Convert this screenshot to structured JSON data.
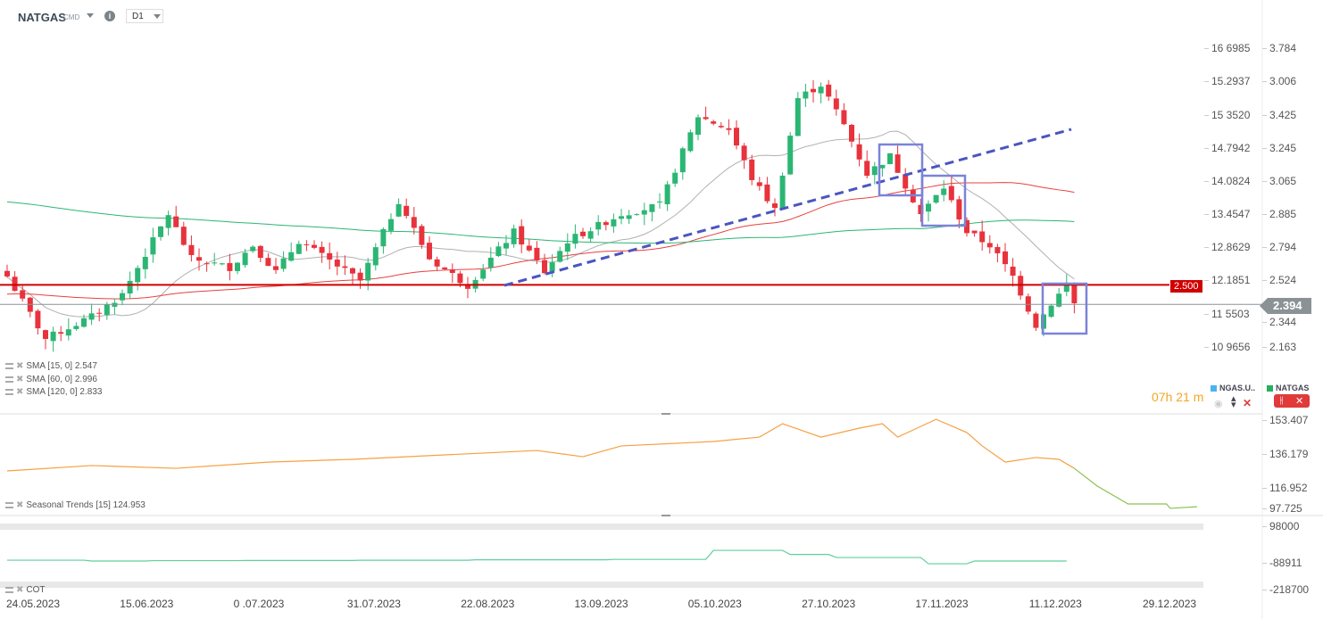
{
  "header": {
    "symbol": "NATGAS",
    "type": "CMD",
    "timeframe": "D1",
    "info_icon": "info-icon"
  },
  "price_axis": [
    "3.784",
    "3.006",
    "3.425",
    "3.245",
    "3.065",
    "2.885",
    "2.794",
    "2.524",
    "2.344",
    "2.163"
  ],
  "secondary_axis": [
    "16 6985",
    "15.2937",
    "15 3520",
    "14.7942",
    "14.0824",
    "13.4547",
    "12.8629",
    "12.1851",
    "11 5503",
    "10 9656"
  ],
  "levels": {
    "resistance_label": "2.500",
    "resistance": 2.5,
    "current_label": "2.394",
    "current": 2.394
  },
  "indicators": [
    {
      "label": "SMA [15, 0] 2.547",
      "color": "#b0b0b0",
      "period": 15
    },
    {
      "label": "SMA [60, 0] 2.996",
      "color": "#e84040",
      "period": 60
    },
    {
      "label": "SMA [120, 0] 2.833",
      "color": "#2bb673",
      "period": 120
    }
  ],
  "timer": "07h 21 m",
  "sources": [
    {
      "label": "NGAS.U..",
      "color": "#4ab3f0"
    },
    {
      "label": "NATGAS",
      "color": "#27ae60"
    }
  ],
  "seasonal": {
    "label": "Seasonal  Trends  [15]  124.953",
    "axis": [
      "153.407",
      "136.179",
      "116.952",
      "97.725"
    ],
    "points": [
      [
        0,
        122.3
      ],
      [
        11,
        125.6
      ],
      [
        22,
        123.9
      ],
      [
        34,
        127.7
      ],
      [
        45,
        129.4
      ],
      [
        57,
        132.1
      ],
      [
        69,
        134.8
      ],
      [
        75,
        131
      ],
      [
        80,
        137.6
      ],
      [
        92,
        140.3
      ],
      [
        98,
        143
      ],
      [
        101,
        151.2
      ],
      [
        106,
        143
      ],
      [
        111,
        148.5
      ],
      [
        114,
        151.2
      ],
      [
        116,
        143
      ],
      [
        121,
        153.9
      ],
      [
        125,
        145.8
      ],
      [
        127,
        137.6
      ],
      [
        130,
        127.7
      ],
      [
        134,
        130.5
      ],
      [
        137,
        129.4
      ],
      [
        139,
        123.9
      ],
      [
        142,
        113
      ],
      [
        146,
        102.1
      ],
      [
        151,
        102.1
      ],
      [
        151.5,
        99.4
      ],
      [
        155,
        100.4
      ]
    ]
  },
  "cot": {
    "label": "COT",
    "axis": [
      "98000",
      "-88911",
      "-218700"
    ],
    "points": [
      [
        0,
        -75870
      ],
      [
        10,
        -75870
      ],
      [
        11,
        -80000
      ],
      [
        18,
        -80000
      ],
      [
        19,
        -78000
      ],
      [
        30,
        -78000
      ],
      [
        31,
        -77000
      ],
      [
        45,
        -77000
      ],
      [
        46,
        -76000
      ],
      [
        60,
        -76000
      ],
      [
        61,
        -74000
      ],
      [
        78,
        -74000
      ],
      [
        79,
        -72000
      ],
      [
        91,
        -72000
      ],
      [
        92,
        -28050
      ],
      [
        101,
        -28050
      ],
      [
        102,
        -48000
      ],
      [
        107,
        -48000
      ],
      [
        108,
        -62830
      ],
      [
        119,
        -62830
      ],
      [
        120,
        -93260
      ],
      [
        125,
        -93260
      ],
      [
        126,
        -80000
      ],
      [
        138,
        -80000
      ]
    ]
  },
  "dates": [
    "24.05.2023",
    "15.06.2023",
    "0 .07.2023",
    "31.07.2023",
    "22.08.2023",
    "13.09.2023",
    "05.10.2023",
    "27.10.2023",
    "17.11.2023",
    "11.12.2023",
    "29.12.2023"
  ],
  "chart_data": {
    "type": "candlestick",
    "symbol": "NATGAS",
    "ylim": [
      2.163,
      3.784
    ],
    "close_keypoints": [
      [
        0,
        2.546
      ],
      [
        5,
        2.207
      ],
      [
        11,
        2.328
      ],
      [
        15,
        2.449
      ],
      [
        21,
        2.884
      ],
      [
        24,
        2.642
      ],
      [
        29,
        2.594
      ],
      [
        32,
        2.715
      ],
      [
        35,
        2.57
      ],
      [
        38,
        2.739
      ],
      [
        46,
        2.521
      ],
      [
        51,
        2.957
      ],
      [
        55,
        2.642
      ],
      [
        60,
        2.497
      ],
      [
        66,
        2.787
      ],
      [
        70,
        2.57
      ],
      [
        73,
        2.739
      ],
      [
        80,
        2.884
      ],
      [
        85,
        2.932
      ],
      [
        90,
        3.416
      ],
      [
        94,
        3.344
      ],
      [
        97,
        3.078
      ],
      [
        100,
        2.908
      ],
      [
        103,
        3.513
      ],
      [
        106,
        3.586
      ],
      [
        109,
        3.368
      ],
      [
        112,
        3.102
      ],
      [
        115,
        3.199
      ],
      [
        119,
        2.884
      ],
      [
        122,
        3.029
      ],
      [
        125,
        2.787
      ],
      [
        128,
        2.715
      ],
      [
        131,
        2.546
      ],
      [
        134,
        2.28
      ],
      [
        136,
        2.4
      ],
      [
        138,
        2.497
      ],
      [
        139,
        2.4
      ]
    ],
    "colors": {
      "up": "#2bb673",
      "down": "#e8323c"
    }
  }
}
